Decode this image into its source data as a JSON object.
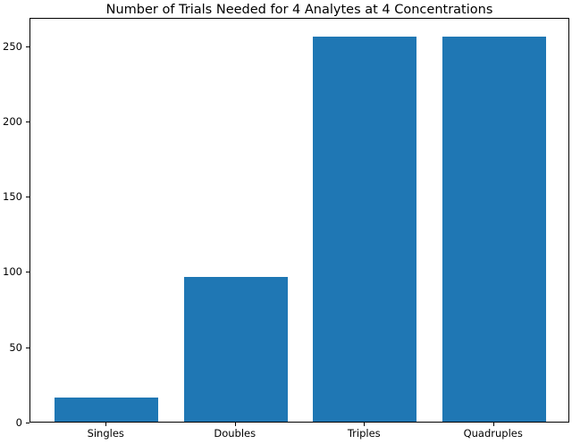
{
  "colors": {
    "bar": "#1f77b4",
    "spine": "#000000",
    "background": "#ffffff",
    "text": "#000000"
  },
  "chart_data": {
    "type": "bar",
    "title": "Number of Trials Needed for 4 Analytes at 4 Concentrations",
    "categories": [
      "Singles",
      "Doubles",
      "Triples",
      "Quadruples"
    ],
    "values": [
      16,
      96,
      256,
      256
    ],
    "xlabel": "",
    "ylabel": "",
    "yticks": [
      0,
      50,
      100,
      150,
      200,
      250
    ],
    "ylim": [
      0,
      268.8
    ],
    "bar_color": "#1f77b4",
    "bar_width_fraction": 0.8,
    "grid": false,
    "legend": "none"
  }
}
